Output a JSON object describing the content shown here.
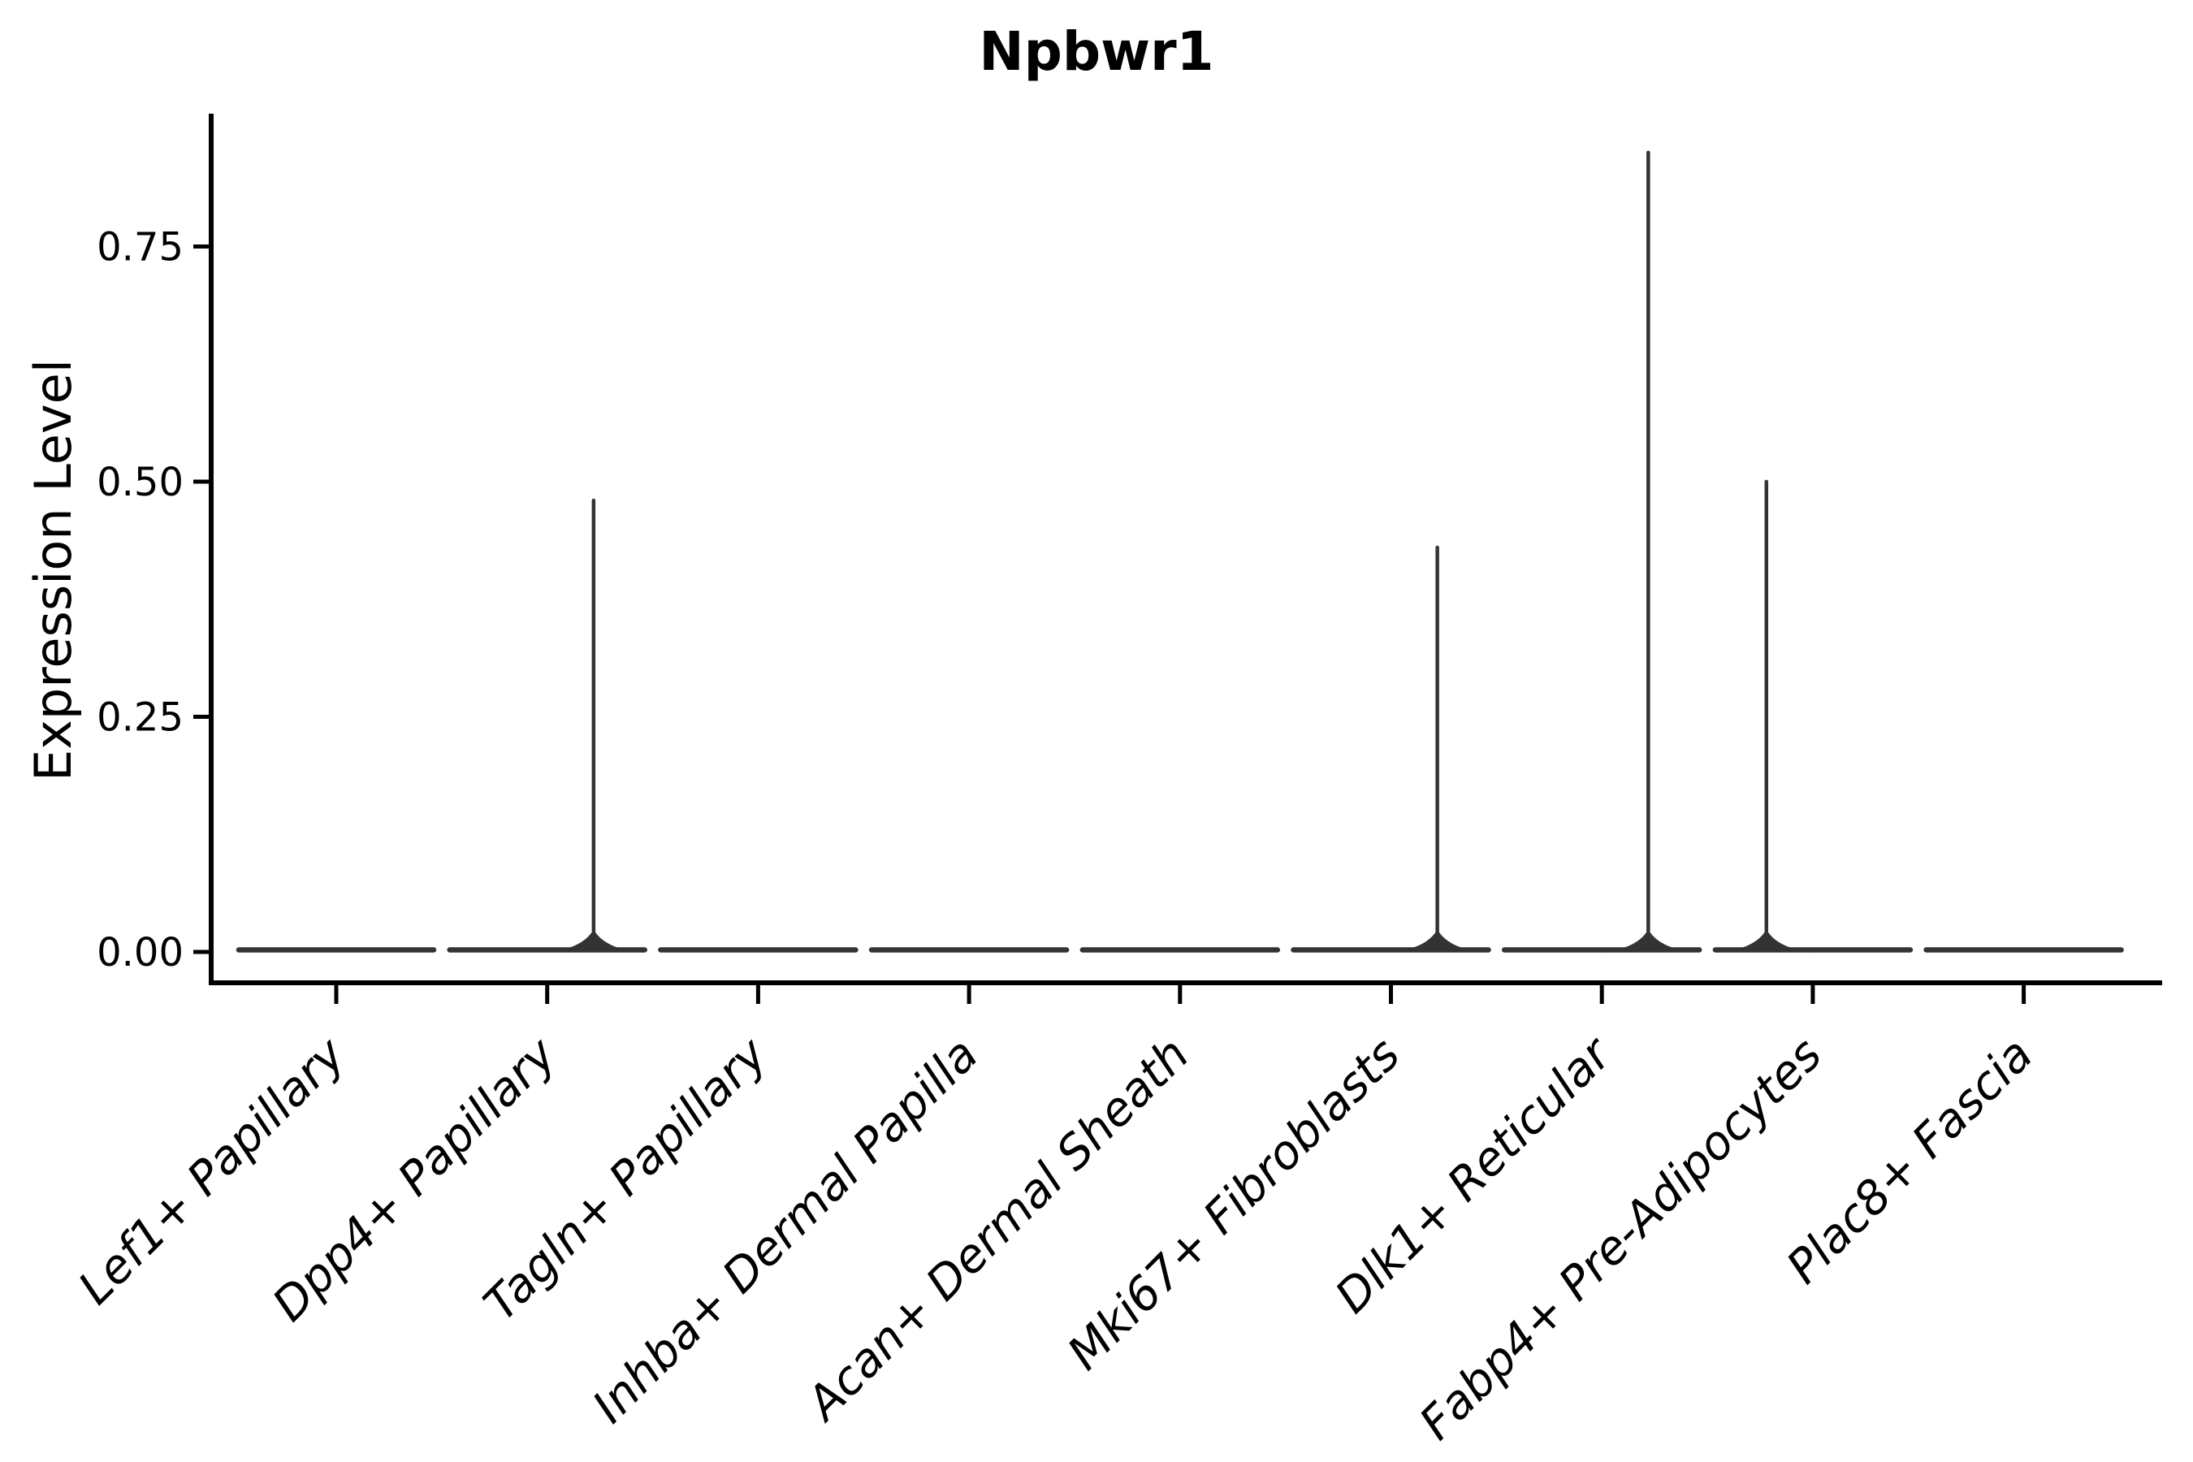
{
  "title": "Npbwr1",
  "chart_data": {
    "type": "violin",
    "title": "Npbwr1",
    "xlabel": "",
    "ylabel": "Expression Level",
    "categories": [
      "Lef1+ Papillary",
      "Dpp4+ Papillary",
      "Tagln+ Papillary",
      "Inhba+ Dermal Papilla",
      "Acan+ Dermal Sheath",
      "Mki67+ Fibroblasts",
      "Dlk1+ Reticular",
      "Fabp4+ Pre-Adipocytes",
      "Plac8+ Fascia"
    ],
    "yticks": [
      "0.00",
      "0.25",
      "0.50",
      "0.75"
    ],
    "ytick_values": [
      0.0,
      0.25,
      0.5,
      0.75
    ],
    "ylim": [
      0.0,
      0.89
    ],
    "grid": false,
    "legend": "none",
    "violins": [
      {
        "category": "Lef1+ Papillary",
        "baseline": 0.0,
        "spike": null
      },
      {
        "category": "Dpp4+ Papillary",
        "baseline": 0.0,
        "spike": {
          "value": 0.48,
          "offset": 0.22
        }
      },
      {
        "category": "Tagln+ Papillary",
        "baseline": 0.0,
        "spike": null
      },
      {
        "category": "Inhba+ Dermal Papilla",
        "baseline": 0.0,
        "spike": null
      },
      {
        "category": "Acan+ Dermal Sheath",
        "baseline": 0.0,
        "spike": null
      },
      {
        "category": "Mki67+ Fibroblasts",
        "baseline": 0.0,
        "spike": {
          "value": 0.43,
          "offset": 0.22
        }
      },
      {
        "category": "Dlk1+ Reticular",
        "baseline": 0.0,
        "spike": {
          "value": 0.85,
          "offset": 0.22
        }
      },
      {
        "category": "Fabp4+ Pre-Adipocytes",
        "baseline": 0.0,
        "spike": {
          "value": 0.5,
          "offset": -0.22
        }
      },
      {
        "category": "Plac8+ Fascia",
        "baseline": 0.0,
        "spike": null
      }
    ],
    "colors": {
      "violin": "#333333",
      "axis": "#000000",
      "text": "#000000"
    }
  }
}
